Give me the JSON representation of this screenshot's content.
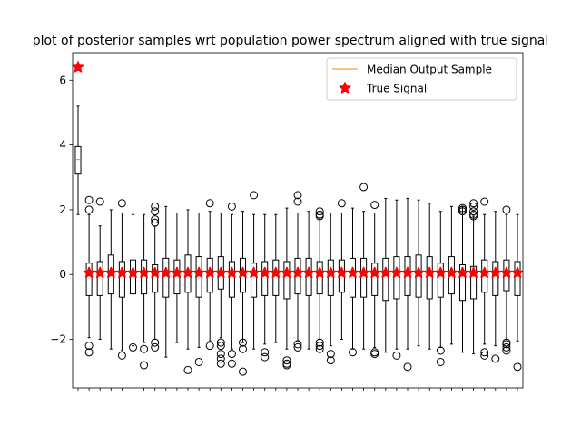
{
  "chart_data": {
    "type": "boxplot",
    "title": "plot of posterior samples wrt population power spectrum aligned with true signal",
    "xlabel": "",
    "ylabel": "",
    "ylim": [
      -3.5,
      6.85
    ],
    "yticks": [
      -2,
      0,
      2,
      4,
      6
    ],
    "show_x_tick_labels": false,
    "grid": false,
    "legend": {
      "location": "top-right",
      "entries": [
        {
          "label": "Median Output Sample",
          "marker": "line",
          "color": "#ff7f0e"
        },
        {
          "label": "True Signal",
          "marker": "star",
          "color": "#ff0000"
        }
      ]
    },
    "box_color": "#000000",
    "median_color": "#ff7f0e",
    "signal_color": "#ff0000",
    "boxes": [
      {
        "q1": 3.1,
        "med": 3.55,
        "q3": 3.95,
        "wl": 1.85,
        "wh": 5.2,
        "out": []
      },
      {
        "q1": -0.65,
        "med": 0.0,
        "q3": 0.35,
        "wl": -1.95,
        "wh": 1.85,
        "out": [
          2.3,
          2.0,
          -2.2,
          -2.4
        ]
      },
      {
        "q1": -0.65,
        "med": 0.05,
        "q3": 0.4,
        "wl": -2.0,
        "wh": 1.5,
        "out": [
          2.25
        ]
      },
      {
        "q1": -0.6,
        "med": 0.05,
        "q3": 0.6,
        "wl": -2.3,
        "wh": 2.0,
        "out": []
      },
      {
        "q1": -0.7,
        "med": 0.0,
        "q3": 0.4,
        "wl": -2.35,
        "wh": 1.9,
        "out": [
          2.2,
          -2.5
        ]
      },
      {
        "q1": -0.6,
        "med": 0.0,
        "q3": 0.45,
        "wl": -2.2,
        "wh": 1.85,
        "out": [
          -2.25
        ]
      },
      {
        "q1": -0.6,
        "med": 0.05,
        "q3": 0.45,
        "wl": -2.1,
        "wh": 1.85,
        "out": [
          -2.3,
          -2.8
        ]
      },
      {
        "q1": -0.55,
        "med": 0.05,
        "q3": 0.3,
        "wl": -2.0,
        "wh": 1.5,
        "out": [
          2.1,
          1.95,
          1.7,
          1.6,
          -2.1,
          -2.25
        ]
      },
      {
        "q1": -0.7,
        "med": 0.05,
        "q3": 0.5,
        "wl": -2.55,
        "wh": 2.1,
        "out": []
      },
      {
        "q1": -0.6,
        "med": 0.0,
        "q3": 0.45,
        "wl": -2.1,
        "wh": 1.9,
        "out": []
      },
      {
        "q1": -0.55,
        "med": 0.05,
        "q3": 0.6,
        "wl": -2.3,
        "wh": 2.0,
        "out": [
          -2.95
        ]
      },
      {
        "q1": -0.7,
        "med": 0.05,
        "q3": 0.55,
        "wl": -2.25,
        "wh": 1.9,
        "out": [
          -2.7
        ]
      },
      {
        "q1": -0.55,
        "med": 0.05,
        "q3": 0.5,
        "wl": -2.05,
        "wh": 1.95,
        "out": [
          2.2,
          -2.2
        ]
      },
      {
        "q1": -0.45,
        "med": 0.0,
        "q3": 0.55,
        "wl": -1.95,
        "wh": 1.9,
        "out": [
          -2.1,
          -2.2,
          -2.45,
          -2.6,
          -2.75
        ]
      },
      {
        "q1": -0.7,
        "med": 0.05,
        "q3": 0.4,
        "wl": -2.3,
        "wh": 1.85,
        "out": [
          2.1,
          -2.45,
          -2.75
        ]
      },
      {
        "q1": -0.55,
        "med": 0.05,
        "q3": 0.5,
        "wl": -2.1,
        "wh": 1.95,
        "out": [
          -2.1,
          -2.3,
          -3.0
        ]
      },
      {
        "q1": -0.7,
        "med": 0.05,
        "q3": 0.35,
        "wl": -2.3,
        "wh": 1.85,
        "out": [
          2.45
        ]
      },
      {
        "q1": -0.65,
        "med": 0.0,
        "q3": 0.4,
        "wl": -2.15,
        "wh": 1.85,
        "out": [
          -2.4,
          -2.55
        ]
      },
      {
        "q1": -0.65,
        "med": 0.05,
        "q3": 0.45,
        "wl": -2.1,
        "wh": 1.85,
        "out": []
      },
      {
        "q1": -0.75,
        "med": 0.0,
        "q3": 0.4,
        "wl": -2.3,
        "wh": 2.05,
        "out": [
          -2.65,
          -2.75,
          -2.8
        ]
      },
      {
        "q1": -0.6,
        "med": 0.05,
        "q3": 0.5,
        "wl": -2.05,
        "wh": 1.9,
        "out": [
          2.45,
          2.25,
          -2.15,
          -2.25
        ]
      },
      {
        "q1": -0.65,
        "med": 0.05,
        "q3": 0.5,
        "wl": -2.3,
        "wh": 1.95,
        "out": []
      },
      {
        "q1": -0.6,
        "med": 0.05,
        "q3": 0.4,
        "wl": -2.0,
        "wh": 1.75,
        "out": [
          1.95,
          1.85,
          1.8,
          -2.1,
          -2.2,
          -2.3
        ]
      },
      {
        "q1": -0.65,
        "med": 0.05,
        "q3": 0.45,
        "wl": -2.2,
        "wh": 1.9,
        "out": [
          -2.45,
          -2.65
        ]
      },
      {
        "q1": -0.55,
        "med": 0.05,
        "q3": 0.45,
        "wl": -2.0,
        "wh": 1.9,
        "out": [
          2.2
        ]
      },
      {
        "q1": -0.7,
        "med": 0.0,
        "q3": 0.5,
        "wl": -2.3,
        "wh": 2.05,
        "out": [
          -2.4
        ]
      },
      {
        "q1": -0.7,
        "med": 0.05,
        "q3": 0.5,
        "wl": -2.3,
        "wh": 1.95,
        "out": [
          2.7
        ]
      },
      {
        "q1": -0.65,
        "med": 0.0,
        "q3": 0.35,
        "wl": -2.25,
        "wh": 1.9,
        "out": [
          2.15,
          -2.4,
          -2.45
        ]
      },
      {
        "q1": -0.8,
        "med": 0.05,
        "q3": 0.5,
        "wl": -2.4,
        "wh": 2.35,
        "out": []
      },
      {
        "q1": -0.75,
        "med": 0.05,
        "q3": 0.55,
        "wl": -2.3,
        "wh": 2.3,
        "out": [
          -2.5
        ]
      },
      {
        "q1": -0.65,
        "med": 0.0,
        "q3": 0.55,
        "wl": -2.3,
        "wh": 2.35,
        "out": [
          -2.85
        ]
      },
      {
        "q1": -0.7,
        "med": 0.05,
        "q3": 0.6,
        "wl": -2.2,
        "wh": 2.3,
        "out": []
      },
      {
        "q1": -0.75,
        "med": 0.05,
        "q3": 0.55,
        "wl": -2.3,
        "wh": 2.2,
        "out": []
      },
      {
        "q1": -0.7,
        "med": 0.0,
        "q3": 0.35,
        "wl": -2.25,
        "wh": 1.95,
        "out": [
          -2.35,
          -2.7
        ]
      },
      {
        "q1": -0.6,
        "med": 0.05,
        "q3": 0.55,
        "wl": -2.15,
        "wh": 2.1,
        "out": []
      },
      {
        "q1": -0.8,
        "med": 0.05,
        "q3": 0.3,
        "wl": -2.4,
        "wh": 2.1,
        "out": [
          2.05,
          2.0,
          1.95
        ]
      },
      {
        "q1": -0.75,
        "med": 0.0,
        "q3": 0.25,
        "wl": -2.45,
        "wh": 1.8,
        "out": [
          2.2,
          2.1,
          1.95,
          1.85,
          1.8
        ]
      },
      {
        "q1": -0.55,
        "med": 0.05,
        "q3": 0.45,
        "wl": -2.15,
        "wh": 1.85,
        "out": [
          2.25,
          -2.4,
          -2.5
        ]
      },
      {
        "q1": -0.65,
        "med": 0.05,
        "q3": 0.4,
        "wl": -2.2,
        "wh": 1.95,
        "out": [
          -2.6
        ]
      },
      {
        "q1": -0.5,
        "med": 0.05,
        "q3": 0.45,
        "wl": -2.0,
        "wh": 1.85,
        "out": [
          2.0,
          -2.1,
          -2.15,
          -2.25,
          -2.35
        ]
      },
      {
        "q1": -0.65,
        "med": 0.05,
        "q3": 0.4,
        "wl": -2.05,
        "wh": 1.85,
        "out": [
          -2.85
        ]
      }
    ],
    "true_signal": [
      6.4,
      0.05,
      0.05,
      0.05,
      0.05,
      0.05,
      0.05,
      0.05,
      0.05,
      0.05,
      0.05,
      0.05,
      0.05,
      0.05,
      0.05,
      0.05,
      0.05,
      0.05,
      0.05,
      0.05,
      0.05,
      0.05,
      0.05,
      0.05,
      0.05,
      0.05,
      0.05,
      0.05,
      0.05,
      0.05,
      0.05,
      0.05,
      0.05,
      0.05,
      0.05,
      0.05,
      0.05,
      0.05,
      0.05,
      0.05,
      0.05
    ]
  }
}
